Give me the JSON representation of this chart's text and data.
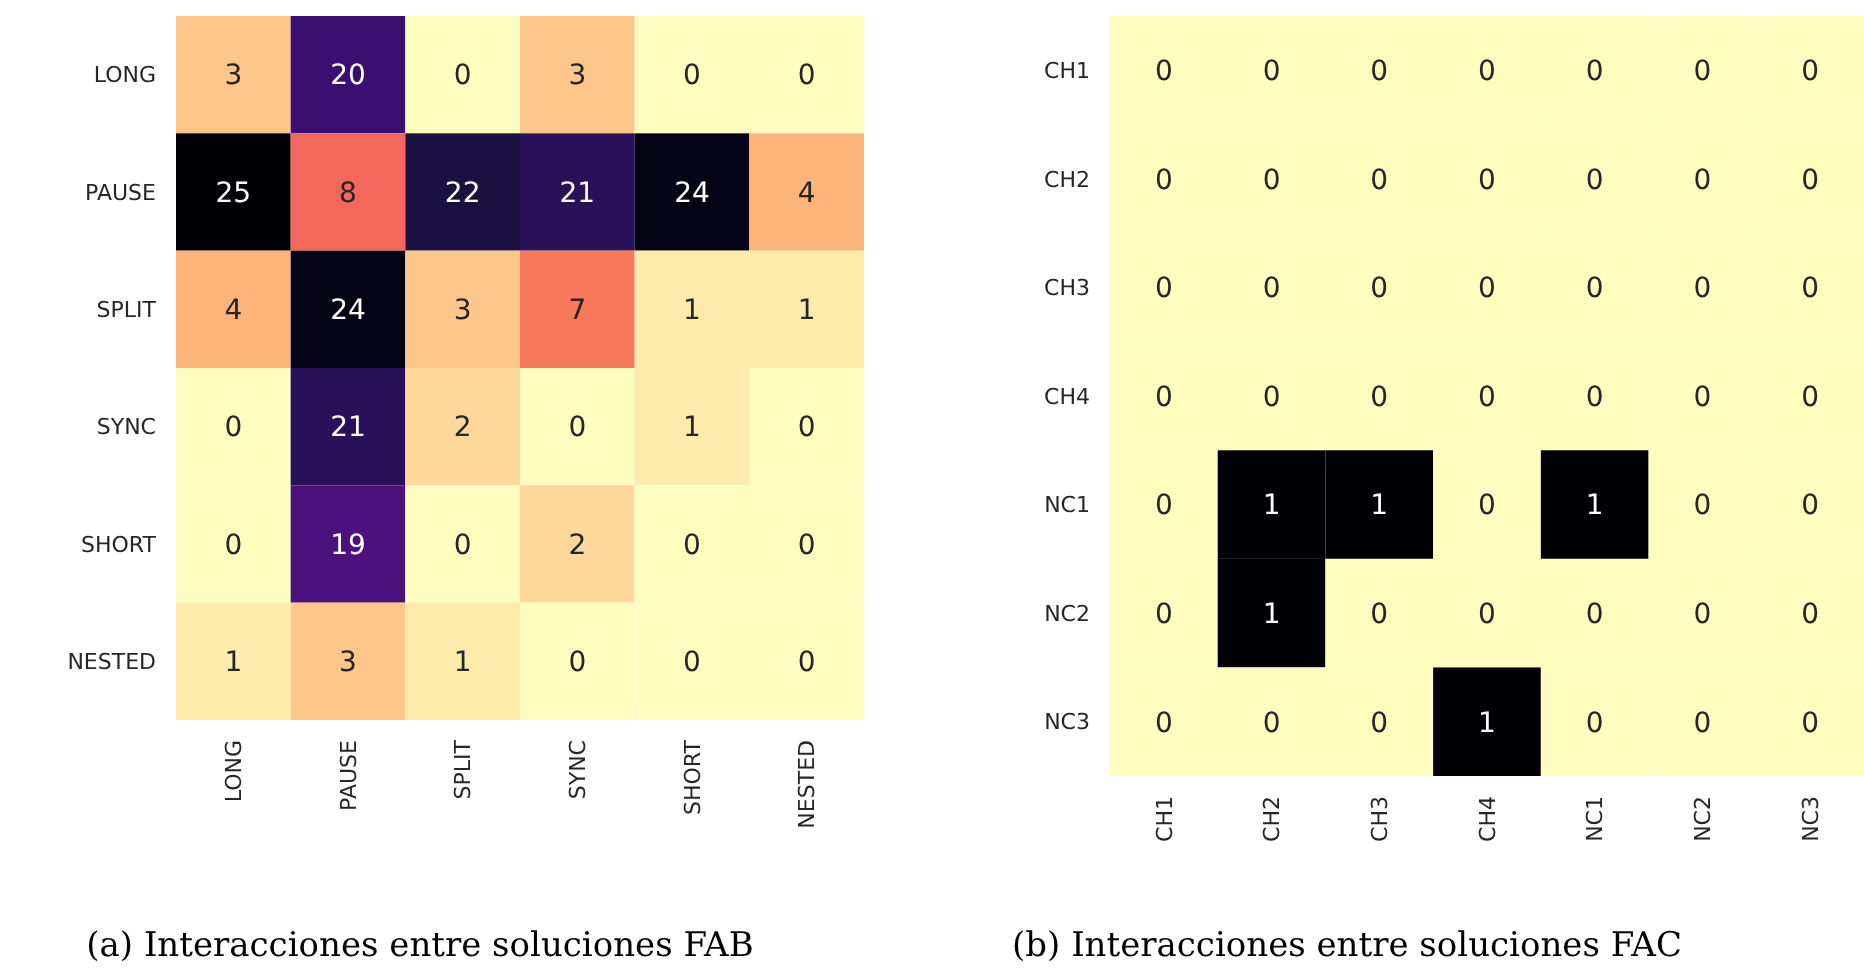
{
  "chart_data": [
    {
      "type": "heatmap",
      "categories": [
        "LONG",
        "PAUSE",
        "SPLIT",
        "SYNC",
        "SHORT",
        "NESTED"
      ],
      "y_categories": [
        "LONG",
        "PAUSE",
        "SPLIT",
        "SYNC",
        "SHORT",
        "NESTED"
      ],
      "cells": [
        [
          3,
          20,
          0,
          3,
          0,
          0
        ],
        [
          25,
          8,
          22,
          21,
          24,
          4
        ],
        [
          4,
          24,
          3,
          7,
          1,
          1
        ],
        [
          0,
          21,
          2,
          0,
          1,
          0
        ],
        [
          0,
          19,
          0,
          2,
          0,
          0
        ],
        [
          1,
          3,
          1,
          0,
          0,
          0
        ]
      ],
      "data_labels": true,
      "annotations": [
        "(a) Interacciones entre soluciones FAB"
      ]
    },
    {
      "type": "heatmap",
      "categories": [
        "CH1",
        "CH2",
        "CH3",
        "CH4",
        "NC1",
        "NC2",
        "NC3"
      ],
      "y_categories": [
        "CH1",
        "CH2",
        "CH3",
        "CH4",
        "NC1",
        "NC2",
        "NC3"
      ],
      "cells": [
        [
          0,
          0,
          0,
          0,
          0,
          0,
          0
        ],
        [
          0,
          0,
          0,
          0,
          0,
          0,
          0
        ],
        [
          0,
          0,
          0,
          0,
          0,
          0,
          0
        ],
        [
          0,
          0,
          0,
          0,
          0,
          0,
          0
        ],
        [
          0,
          1,
          1,
          0,
          1,
          0,
          0
        ],
        [
          0,
          1,
          0,
          0,
          0,
          0,
          0
        ],
        [
          0,
          0,
          0,
          1,
          0,
          0,
          0
        ]
      ],
      "data_labels": true,
      "annotations": [
        "(b) Interacciones entre soluciones FAC"
      ]
    }
  ]
}
